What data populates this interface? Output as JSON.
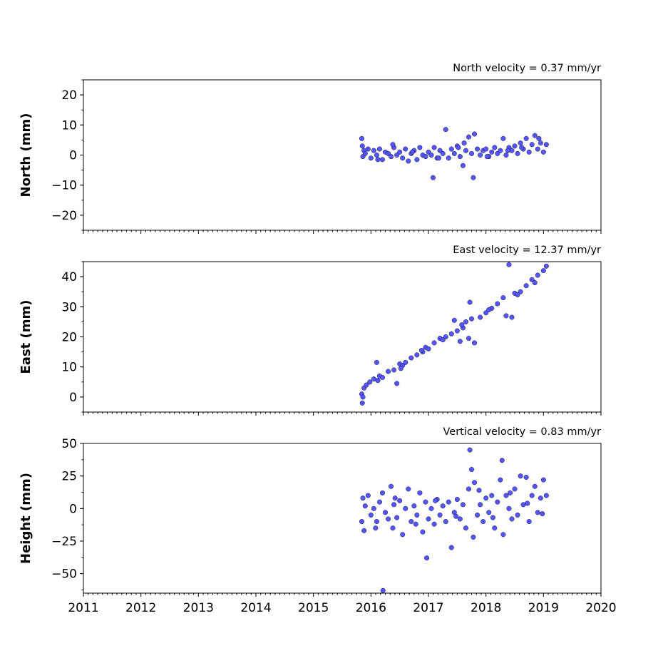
{
  "colors": {
    "marker_fill": "#5555ff",
    "marker_edge": "#000000",
    "axes": "#000000"
  },
  "chart_data": [
    {
      "type": "scatter",
      "title": "North velocity = 0.37 mm/yr",
      "ylabel": "North (mm)",
      "xlim": [
        2011,
        2020
      ],
      "ylim": [
        -25,
        25
      ],
      "yticks": [
        "−20",
        "−10",
        "0",
        "10",
        "20"
      ],
      "xticks": [
        "2011",
        "2012",
        "2013",
        "2014",
        "2015",
        "2016",
        "2017",
        "2018",
        "2019",
        "2020"
      ],
      "show_xtick_labels": false,
      "series": [
        {
          "x": [
            2015.84,
            2015.85,
            2015.86,
            2015.88,
            2015.9,
            2015.95,
            2016.0,
            2016.05,
            2016.1,
            2016.15,
            2016.2,
            2016.25,
            2016.3,
            2016.35,
            2016.4,
            2016.45,
            2016.5,
            2016.55,
            2016.6,
            2016.65,
            2016.7,
            2016.75,
            2016.8,
            2016.85,
            2016.9,
            2016.95,
            2017.0,
            2017.05,
            2017.08,
            2017.1,
            2017.15,
            2017.2,
            2017.25,
            2017.3,
            2017.35,
            2017.4,
            2017.45,
            2017.5,
            2017.55,
            2017.6,
            2017.62,
            2017.65,
            2017.7,
            2017.75,
            2017.78,
            2017.8,
            2017.85,
            2017.9,
            2017.95,
            2018.0,
            2018.05,
            2018.1,
            2018.15,
            2018.2,
            2018.25,
            2018.3,
            2018.35,
            2018.4,
            2018.45,
            2018.5,
            2018.55,
            2018.6,
            2018.65,
            2018.7,
            2018.75,
            2018.8,
            2018.85,
            2018.9,
            2018.95,
            2019.0,
            2019.05,
            2016.12,
            2016.38,
            2016.72,
            2017.18,
            2017.52,
            2018.02,
            2018.38,
            2018.62,
            2018.92
          ],
          "y": [
            5.5,
            3.0,
            -0.5,
            1.5,
            0.5,
            2.0,
            -1.0,
            1.5,
            0.0,
            2.0,
            -1.5,
            1.0,
            0.5,
            -0.5,
            2.5,
            0.0,
            1.0,
            -1.0,
            2.0,
            -2.0,
            0.5,
            1.5,
            -1.5,
            2.5,
            0.0,
            -0.5,
            1.0,
            0.0,
            -7.5,
            2.5,
            -1.0,
            1.5,
            0.5,
            8.5,
            -1.0,
            2.0,
            0.5,
            3.0,
            -0.5,
            -3.5,
            4.0,
            1.5,
            6.0,
            0.5,
            -7.5,
            7.0,
            2.0,
            0.0,
            1.5,
            2.0,
            -0.5,
            1.0,
            2.5,
            0.5,
            1.5,
            5.5,
            0.0,
            2.5,
            1.5,
            3.0,
            0.5,
            4.0,
            2.0,
            5.5,
            1.0,
            3.5,
            6.5,
            2.0,
            4.0,
            1.0,
            3.5,
            -1.5,
            3.5,
            1.0,
            -1.0,
            2.5,
            -0.5,
            1.5,
            2.5,
            5.5
          ]
        }
      ]
    },
    {
      "type": "scatter",
      "title": "East velocity = 12.37 mm/yr",
      "ylabel": "East (mm)",
      "xlim": [
        2011,
        2020
      ],
      "ylim": [
        -5,
        45
      ],
      "yticks": [
        "0",
        "10",
        "20",
        "30",
        "40"
      ],
      "xticks": [
        "2011",
        "2012",
        "2013",
        "2014",
        "2015",
        "2016",
        "2017",
        "2018",
        "2019",
        "2020"
      ],
      "show_xtick_labels": false,
      "series": [
        {
          "x": [
            2015.84,
            2015.85,
            2015.86,
            2015.88,
            2015.92,
            2015.98,
            2016.05,
            2016.1,
            2016.15,
            2016.2,
            2016.3,
            2016.4,
            2016.45,
            2016.5,
            2016.55,
            2016.6,
            2016.7,
            2016.8,
            2016.9,
            2016.95,
            2017.0,
            2017.1,
            2017.2,
            2017.3,
            2017.4,
            2017.45,
            2017.5,
            2017.55,
            2017.6,
            2017.65,
            2017.7,
            2017.72,
            2017.75,
            2017.8,
            2017.9,
            2018.0,
            2018.1,
            2018.2,
            2018.3,
            2018.35,
            2018.4,
            2018.45,
            2018.5,
            2018.6,
            2018.7,
            2018.8,
            2018.9,
            2019.0,
            2019.05,
            2016.12,
            2016.52,
            2016.88,
            2017.25,
            2017.58,
            2018.05,
            2018.55,
            2018.85
          ],
          "y": [
            1.0,
            -2.0,
            0.0,
            3.0,
            4.0,
            5.0,
            6.0,
            11.5,
            7.0,
            6.5,
            8.5,
            9.0,
            4.5,
            11.0,
            10.5,
            11.5,
            13.0,
            14.0,
            15.0,
            16.5,
            16.0,
            18.0,
            19.5,
            20.0,
            21.0,
            25.5,
            22.0,
            18.5,
            23.0,
            25.0,
            19.5,
            31.5,
            26.0,
            18.0,
            26.5,
            28.0,
            29.5,
            31.0,
            33.0,
            27.0,
            44.0,
            26.5,
            34.5,
            35.0,
            37.0,
            39.0,
            40.5,
            42.0,
            43.5,
            5.5,
            9.5,
            15.5,
            19.0,
            24.0,
            29.0,
            34.0,
            38.0
          ]
        }
      ]
    },
    {
      "type": "scatter",
      "title": "Vertical velocity = 0.83 mm/yr",
      "ylabel": "Height (mm)",
      "xlim": [
        2011,
        2020
      ],
      "ylim": [
        -65,
        50
      ],
      "yticks": [
        "−50",
        "−25",
        "0",
        "25",
        "50"
      ],
      "xticks": [
        "2011",
        "2012",
        "2013",
        "2014",
        "2015",
        "2016",
        "2017",
        "2018",
        "2019",
        "2020"
      ],
      "show_xtick_labels": true,
      "series": [
        {
          "x": [
            2015.84,
            2015.86,
            2015.88,
            2015.9,
            2015.95,
            2016.0,
            2016.05,
            2016.1,
            2016.15,
            2016.2,
            2016.21,
            2016.25,
            2016.3,
            2016.35,
            2016.38,
            2016.4,
            2016.45,
            2016.5,
            2016.55,
            2016.6,
            2016.65,
            2016.7,
            2016.75,
            2016.8,
            2016.85,
            2016.9,
            2016.95,
            2016.97,
            2017.0,
            2017.05,
            2017.1,
            2017.15,
            2017.2,
            2017.25,
            2017.3,
            2017.35,
            2017.4,
            2017.45,
            2017.5,
            2017.55,
            2017.6,
            2017.65,
            2017.7,
            2017.72,
            2017.75,
            2017.78,
            2017.8,
            2017.85,
            2017.9,
            2017.95,
            2018.0,
            2018.05,
            2018.1,
            2018.15,
            2018.2,
            2018.25,
            2018.28,
            2018.3,
            2018.35,
            2018.4,
            2018.45,
            2018.5,
            2018.55,
            2018.6,
            2018.65,
            2018.7,
            2018.75,
            2018.8,
            2018.85,
            2018.9,
            2018.95,
            2019.0,
            2019.05,
            2016.08,
            2016.42,
            2016.78,
            2017.12,
            2017.48,
            2017.88,
            2018.12,
            2018.42,
            2018.72,
            2018.98
          ],
          "y": [
            -10.0,
            8.0,
            -17.0,
            2.0,
            10.0,
            -5.0,
            0.0,
            -10.0,
            5.0,
            12.0,
            -63.0,
            -3.0,
            -8.0,
            17.0,
            -15.0,
            3.0,
            -7.0,
            6.0,
            -20.0,
            0.0,
            15.0,
            -10.0,
            2.0,
            -5.0,
            12.0,
            -18.0,
            5.0,
            -38.0,
            -8.0,
            0.0,
            -12.0,
            7.0,
            -5.0,
            2.0,
            -10.0,
            5.0,
            -30.0,
            -3.0,
            7.0,
            -8.0,
            3.0,
            -15.0,
            15.0,
            45.0,
            30.0,
            -22.0,
            20.0,
            -5.0,
            3.0,
            -10.0,
            8.0,
            -3.0,
            10.0,
            -15.0,
            5.0,
            22.0,
            37.0,
            -20.0,
            10.0,
            0.0,
            -8.0,
            15.0,
            -5.0,
            25.0,
            3.0,
            24.0,
            -10.0,
            10.0,
            17.0,
            -3.0,
            8.0,
            22.0,
            10.0,
            -15.0,
            8.0,
            -12.0,
            6.0,
            -6.0,
            14.0,
            -7.0,
            12.0,
            4.0,
            -4.0
          ]
        }
      ]
    }
  ]
}
